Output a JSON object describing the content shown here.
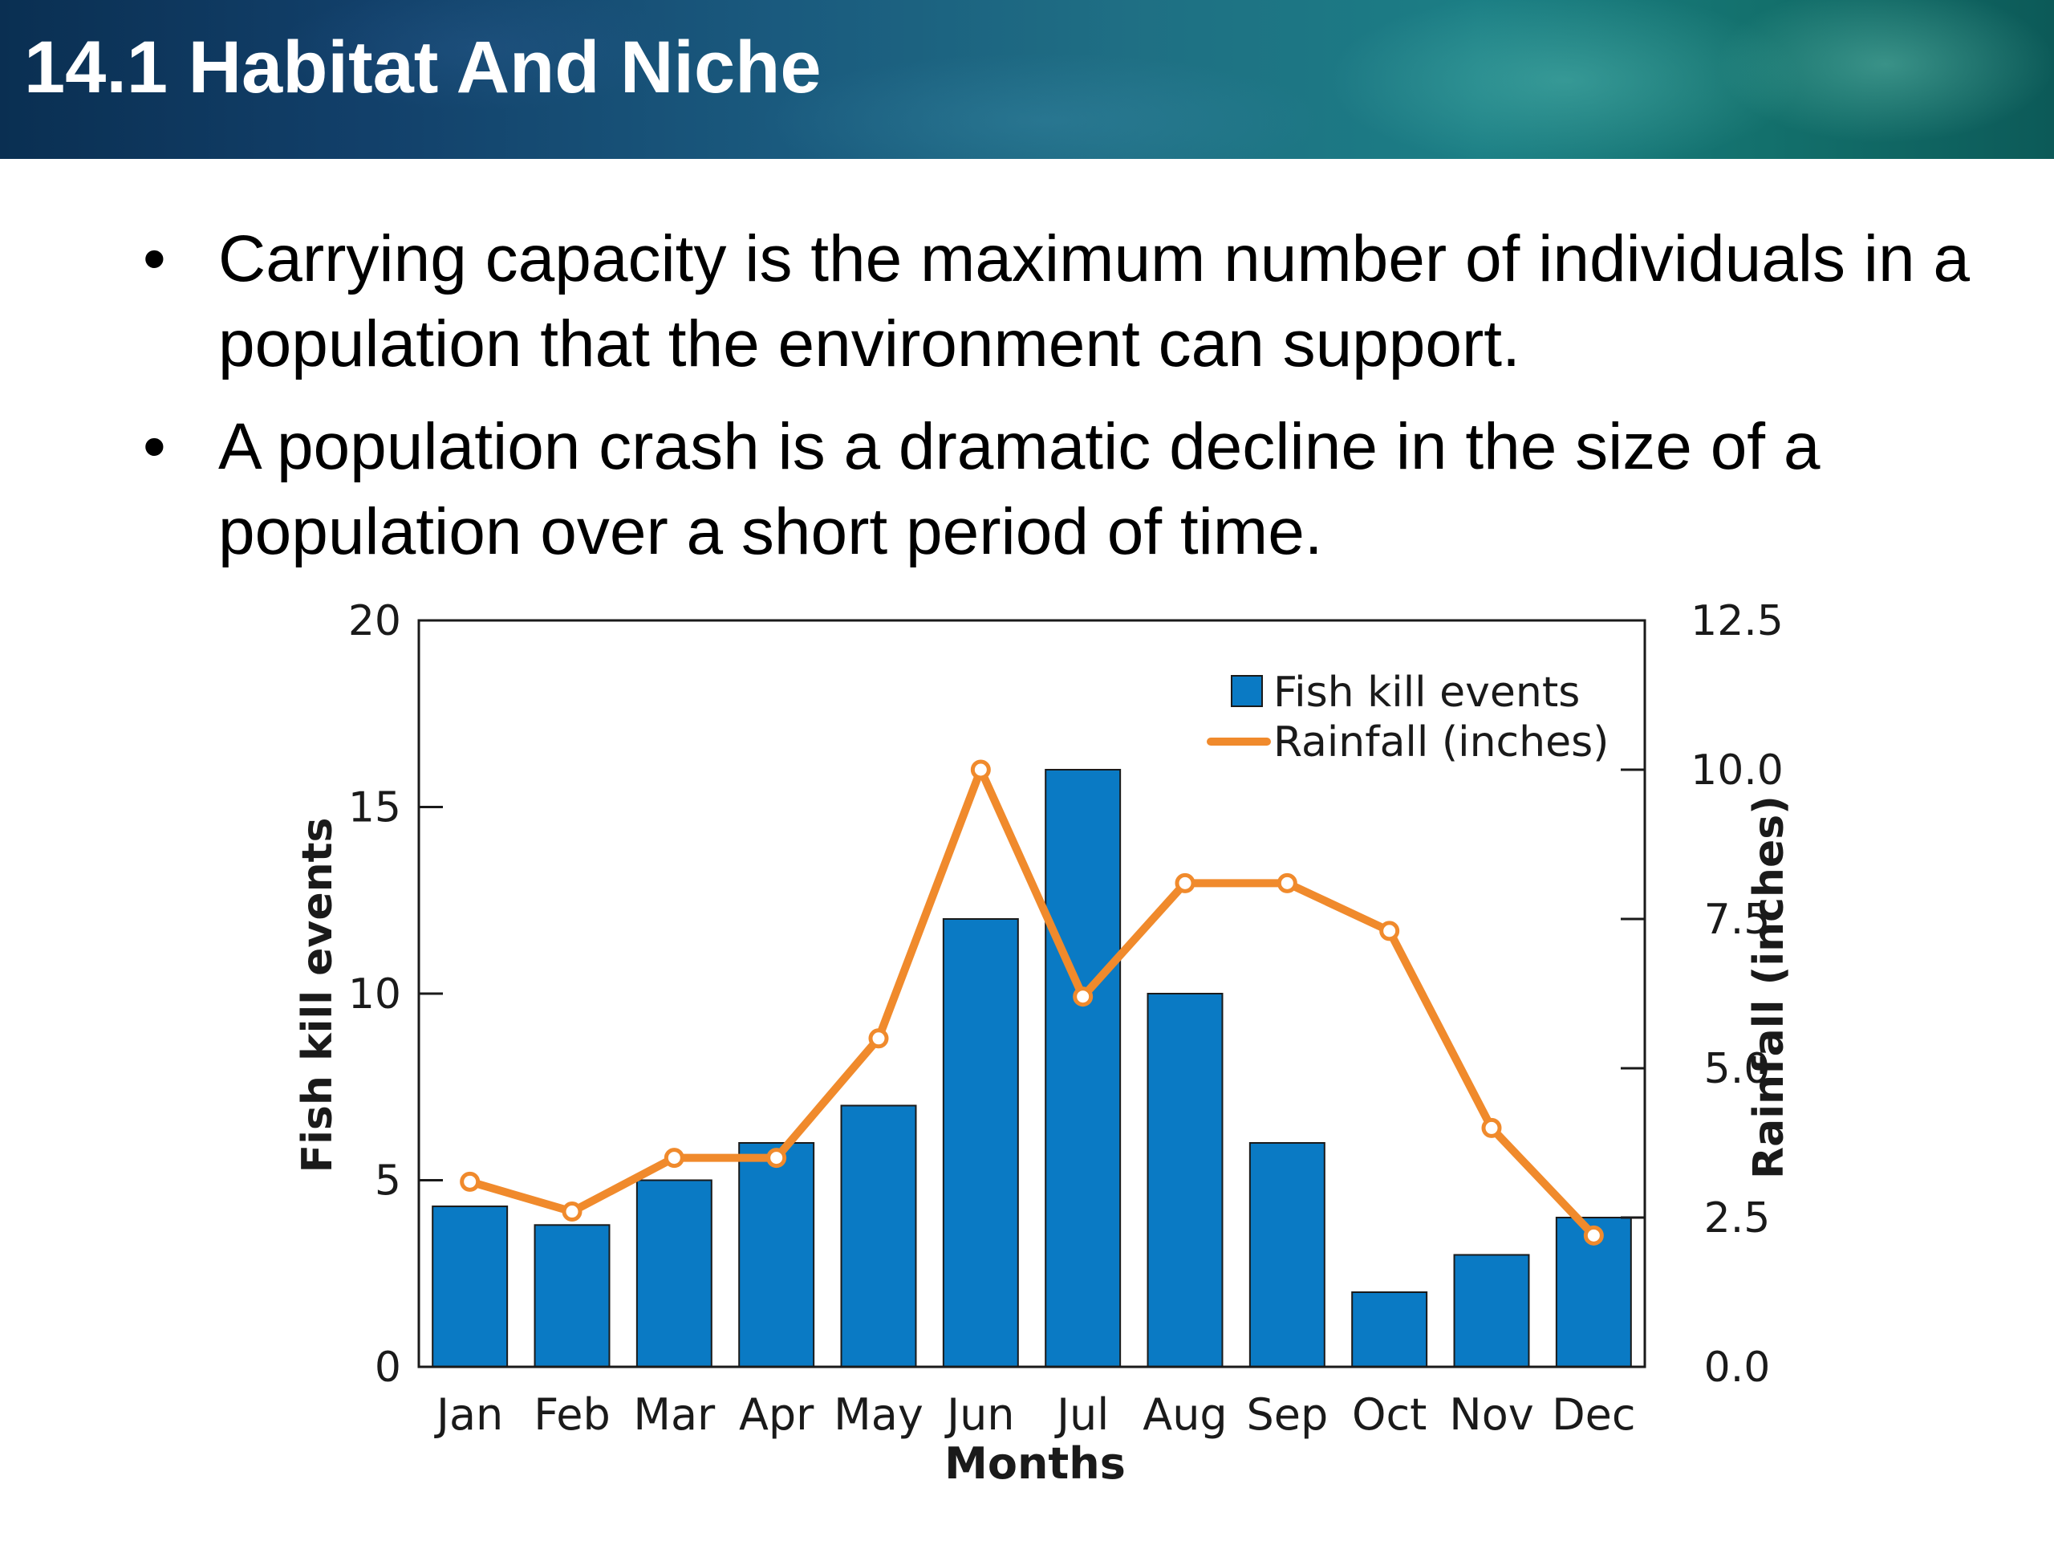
{
  "header": {
    "title": "14.1 Habitat And Niche"
  },
  "bullets": [
    {
      "text": "Carrying capacity is the maximum number of individuals in a population that the environment can support."
    },
    {
      "text": "A population crash is a dramatic decline in the size of a population over a short period of time."
    }
  ],
  "chart_data": {
    "type": "bar",
    "categories": [
      "Jan",
      "Feb",
      "Mar",
      "Apr",
      "May",
      "Jun",
      "Jul",
      "Aug",
      "Sep",
      "Oct",
      "Nov",
      "Dec"
    ],
    "series": [
      {
        "name": "Fish kill events",
        "type": "bar",
        "axis": "left",
        "color": "#0a7ac4",
        "values": [
          4.3,
          3.8,
          5,
          6,
          7,
          12,
          16,
          10,
          6,
          2,
          3,
          4
        ]
      },
      {
        "name": "Rainfall (inches)",
        "type": "line",
        "axis": "right",
        "color": "#f08a2c",
        "values": [
          3.1,
          2.6,
          3.5,
          3.5,
          5.5,
          10.0,
          6.2,
          8.1,
          8.1,
          7.3,
          4.0,
          2.2
        ]
      }
    ],
    "xlabel": "Months",
    "ylabel": "Fish kill events",
    "y2label": "Rainfall (inches)",
    "ylim": [
      0,
      20
    ],
    "y2lim": [
      0,
      12.5
    ],
    "yticks": [
      "0",
      "5",
      "10",
      "15",
      "20"
    ],
    "y2ticks": [
      "0.0",
      "2.5",
      "5.0",
      "7.5",
      "10.0",
      "12.5"
    ],
    "grid": false,
    "legend": "top-right"
  }
}
